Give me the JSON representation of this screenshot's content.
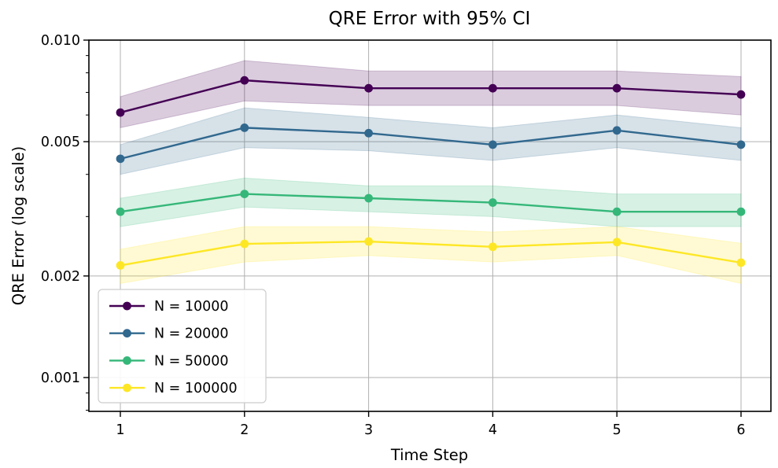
{
  "chart_data": {
    "type": "line",
    "title": "QRE Error with 95% CI",
    "xlabel": "Time Step",
    "ylabel": "QRE Error (log scale)",
    "y_scale": "log",
    "ylim": [
      0.0008,
      0.01
    ],
    "xlim": [
      0.75,
      6.24
    ],
    "grid": true,
    "legend_position": "lower-left",
    "band_alpha": 0.2,
    "x": [
      1,
      2,
      3,
      4,
      5,
      6
    ],
    "x_tick_labels": [
      "1",
      "2",
      "3",
      "4",
      "5",
      "6"
    ],
    "y_major_ticks": [
      0.001,
      0.002,
      0.005,
      0.01
    ],
    "y_major_tick_labels": [
      "0.001",
      "0.002",
      "0.005",
      "0.010"
    ],
    "y_minor_ticks": [
      0.0008,
      0.0009,
      0.003,
      0.004,
      0.006,
      0.007,
      0.008,
      0.009
    ],
    "series": [
      {
        "name": "N = 10000",
        "color": "#440154",
        "values": [
          0.0061,
          0.0076,
          0.0072,
          0.0072,
          0.0072,
          0.0069
        ],
        "ci_upper": [
          0.0068,
          0.0087,
          0.0081,
          0.0081,
          0.0081,
          0.0078
        ],
        "ci_lower": [
          0.0055,
          0.0066,
          0.0064,
          0.0064,
          0.0064,
          0.006
        ]
      },
      {
        "name": "N = 20000",
        "color": "#31688e",
        "values": [
          0.00445,
          0.0055,
          0.0053,
          0.0049,
          0.0054,
          0.0049
        ],
        "ci_upper": [
          0.0049,
          0.0063,
          0.0059,
          0.0055,
          0.006,
          0.0055
        ],
        "ci_lower": [
          0.004,
          0.0048,
          0.0047,
          0.0044,
          0.0048,
          0.0044
        ]
      },
      {
        "name": "N = 50000",
        "color": "#35b779",
        "values": [
          0.0031,
          0.0035,
          0.0034,
          0.0033,
          0.0031,
          0.0031
        ],
        "ci_upper": [
          0.0034,
          0.0039,
          0.0037,
          0.0037,
          0.0035,
          0.0035
        ],
        "ci_lower": [
          0.0028,
          0.0032,
          0.0031,
          0.003,
          0.0028,
          0.0028
        ]
      },
      {
        "name": "N = 100000",
        "color": "#fde725",
        "values": [
          0.00215,
          0.00249,
          0.00253,
          0.00244,
          0.00252,
          0.00219
        ],
        "ci_upper": [
          0.0024,
          0.0028,
          0.0028,
          0.0027,
          0.0028,
          0.0025
        ],
        "ci_lower": [
          0.0019,
          0.0022,
          0.0023,
          0.0022,
          0.0023,
          0.0019
        ]
      }
    ],
    "colors": {
      "grid": "#b0b0b0",
      "spine": "#000000",
      "background": "#ffffff",
      "legend_border": "#cccccc",
      "text": "#000000"
    }
  }
}
